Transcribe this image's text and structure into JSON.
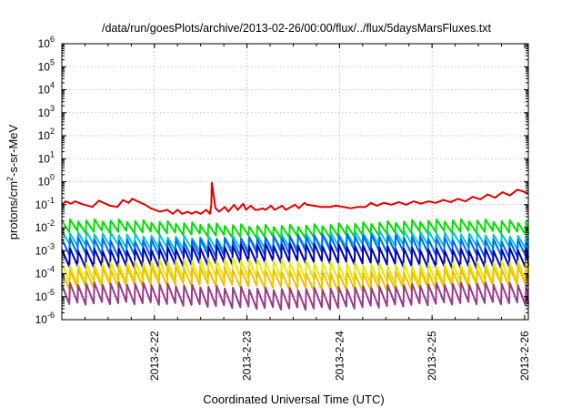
{
  "chart_data": {
    "type": "line",
    "title": "/data/run/goesPlots/archive/2013-02-26/00:00/flux/../flux/5daysMarsFluxes.txt",
    "xlabel": "Coordinated Universal Time (UTC)",
    "ylabel_base": "protons/cm",
    "ylabel_sup": "2",
    "ylabel_rest": "-s-sr-MeV",
    "y_scale": "log",
    "ylim_exp": [
      -6,
      6
    ],
    "y_ticks": [
      {
        "base": "10",
        "exp": "-6",
        "value": -6
      },
      {
        "base": "10",
        "exp": "-5",
        "value": -5
      },
      {
        "base": "10",
        "exp": "-4",
        "value": -4
      },
      {
        "base": "10",
        "exp": "-3",
        "value": -3
      },
      {
        "base": "10",
        "exp": "-2",
        "value": -2
      },
      {
        "base": "10",
        "exp": "-1",
        "value": -1
      },
      {
        "base": "10",
        "exp": "0",
        "value": 0
      },
      {
        "base": "10",
        "exp": "1",
        "value": 1
      },
      {
        "base": "10",
        "exp": "2",
        "value": 2
      },
      {
        "base": "10",
        "exp": "3",
        "value": 3
      },
      {
        "base": "10",
        "exp": "4",
        "value": 4
      },
      {
        "base": "10",
        "exp": "5",
        "value": 5
      },
      {
        "base": "10",
        "exp": "6",
        "value": 6
      }
    ],
    "x_range_days": [
      "2013-02-21 01:00",
      "2013-02-26 01:00"
    ],
    "x_ticks": [
      {
        "label": "2013-2-22",
        "day": 1.0
      },
      {
        "label": "2013-2-23",
        "day": 2.0
      },
      {
        "label": "2013-2-24",
        "day": 3.0
      },
      {
        "label": "2013-2-25",
        "day": 4.0
      },
      {
        "label": "2013-2-26",
        "day": 5.0
      }
    ],
    "x_start_day": 0.0,
    "x_end_day": 5.04,
    "grid": true,
    "legend": "none",
    "series": [
      {
        "color": "#e00000",
        "points": [
          [
            0.0,
            0.1
          ],
          [
            0.04,
            0.14
          ],
          [
            0.1,
            0.11
          ],
          [
            0.14,
            0.14
          ],
          [
            0.24,
            0.1
          ],
          [
            0.33,
            0.08
          ],
          [
            0.4,
            0.15
          ],
          [
            0.52,
            0.09
          ],
          [
            0.6,
            0.08
          ],
          [
            0.66,
            0.16
          ],
          [
            0.72,
            0.12
          ],
          [
            0.76,
            0.18
          ],
          [
            0.9,
            0.1
          ],
          [
            0.96,
            0.07
          ],
          [
            1.06,
            0.05
          ],
          [
            1.14,
            0.06
          ],
          [
            1.2,
            0.04
          ],
          [
            1.25,
            0.06
          ],
          [
            1.3,
            0.04
          ],
          [
            1.36,
            0.05
          ],
          [
            1.4,
            0.04
          ],
          [
            1.45,
            0.05
          ],
          [
            1.5,
            0.04
          ],
          [
            1.56,
            0.06
          ],
          [
            1.6,
            0.04
          ],
          [
            1.66,
            0.07
          ],
          [
            1.7,
            0.05
          ],
          [
            1.76,
            0.08
          ],
          [
            1.8,
            0.05
          ],
          [
            1.86,
            0.1
          ],
          [
            1.9,
            0.06
          ],
          [
            1.96,
            0.11
          ],
          [
            1.99,
            0.06
          ],
          [
            2.04,
            0.09
          ],
          [
            2.09,
            0.06
          ],
          [
            2.12,
            0.06
          ],
          [
            2.17,
            0.07
          ],
          [
            2.2,
            0.06
          ],
          [
            2.26,
            0.09
          ],
          [
            2.3,
            0.06
          ],
          [
            2.38,
            0.09
          ],
          [
            2.42,
            0.06
          ],
          [
            2.52,
            0.1
          ],
          [
            2.56,
            0.07
          ],
          [
            2.62,
            0.12
          ],
          [
            2.65,
            0.1
          ],
          [
            2.72,
            0.09
          ],
          [
            2.8,
            0.08
          ],
          [
            2.9,
            0.08
          ],
          [
            2.96,
            0.09
          ],
          [
            3.04,
            0.08
          ],
          [
            3.12,
            0.07
          ],
          [
            3.2,
            0.08
          ],
          [
            3.28,
            0.08
          ],
          [
            3.34,
            0.12
          ],
          [
            3.4,
            0.09
          ],
          [
            3.48,
            0.12
          ],
          [
            3.56,
            0.1
          ],
          [
            3.64,
            0.13
          ],
          [
            3.72,
            0.1
          ],
          [
            3.8,
            0.14
          ],
          [
            3.88,
            0.11
          ],
          [
            3.96,
            0.14
          ],
          [
            4.04,
            0.12
          ],
          [
            4.12,
            0.16
          ],
          [
            4.2,
            0.13
          ],
          [
            4.28,
            0.18
          ],
          [
            4.36,
            0.14
          ],
          [
            4.44,
            0.22
          ],
          [
            4.52,
            0.17
          ],
          [
            4.6,
            0.28
          ],
          [
            4.68,
            0.2
          ],
          [
            4.76,
            0.35
          ],
          [
            4.84,
            0.25
          ],
          [
            4.92,
            0.45
          ],
          [
            4.98,
            0.38
          ],
          [
            5.04,
            0.3
          ]
        ]
      },
      {
        "color": "#00e000",
        "base_exp": -1.85,
        "amp": 0.5
      },
      {
        "color": "#00c8c8",
        "base_exp": -2.35,
        "amp": 0.55
      },
      {
        "color": "#0066ff",
        "base_exp": -2.5,
        "amp": 0.7
      },
      {
        "color": "#0000b0",
        "base_exp": -2.9,
        "amp": 0.75
      },
      {
        "color": "#e8e800",
        "base_exp": -3.55,
        "amp": 0.8
      },
      {
        "color": "#f0c000",
        "base_exp": -3.9,
        "amp": 0.75
      },
      {
        "color": "#9a3a8a",
        "base_exp": -4.6,
        "amp": 0.85
      }
    ],
    "spike": {
      "day": 1.62,
      "value": 0.9
    }
  }
}
